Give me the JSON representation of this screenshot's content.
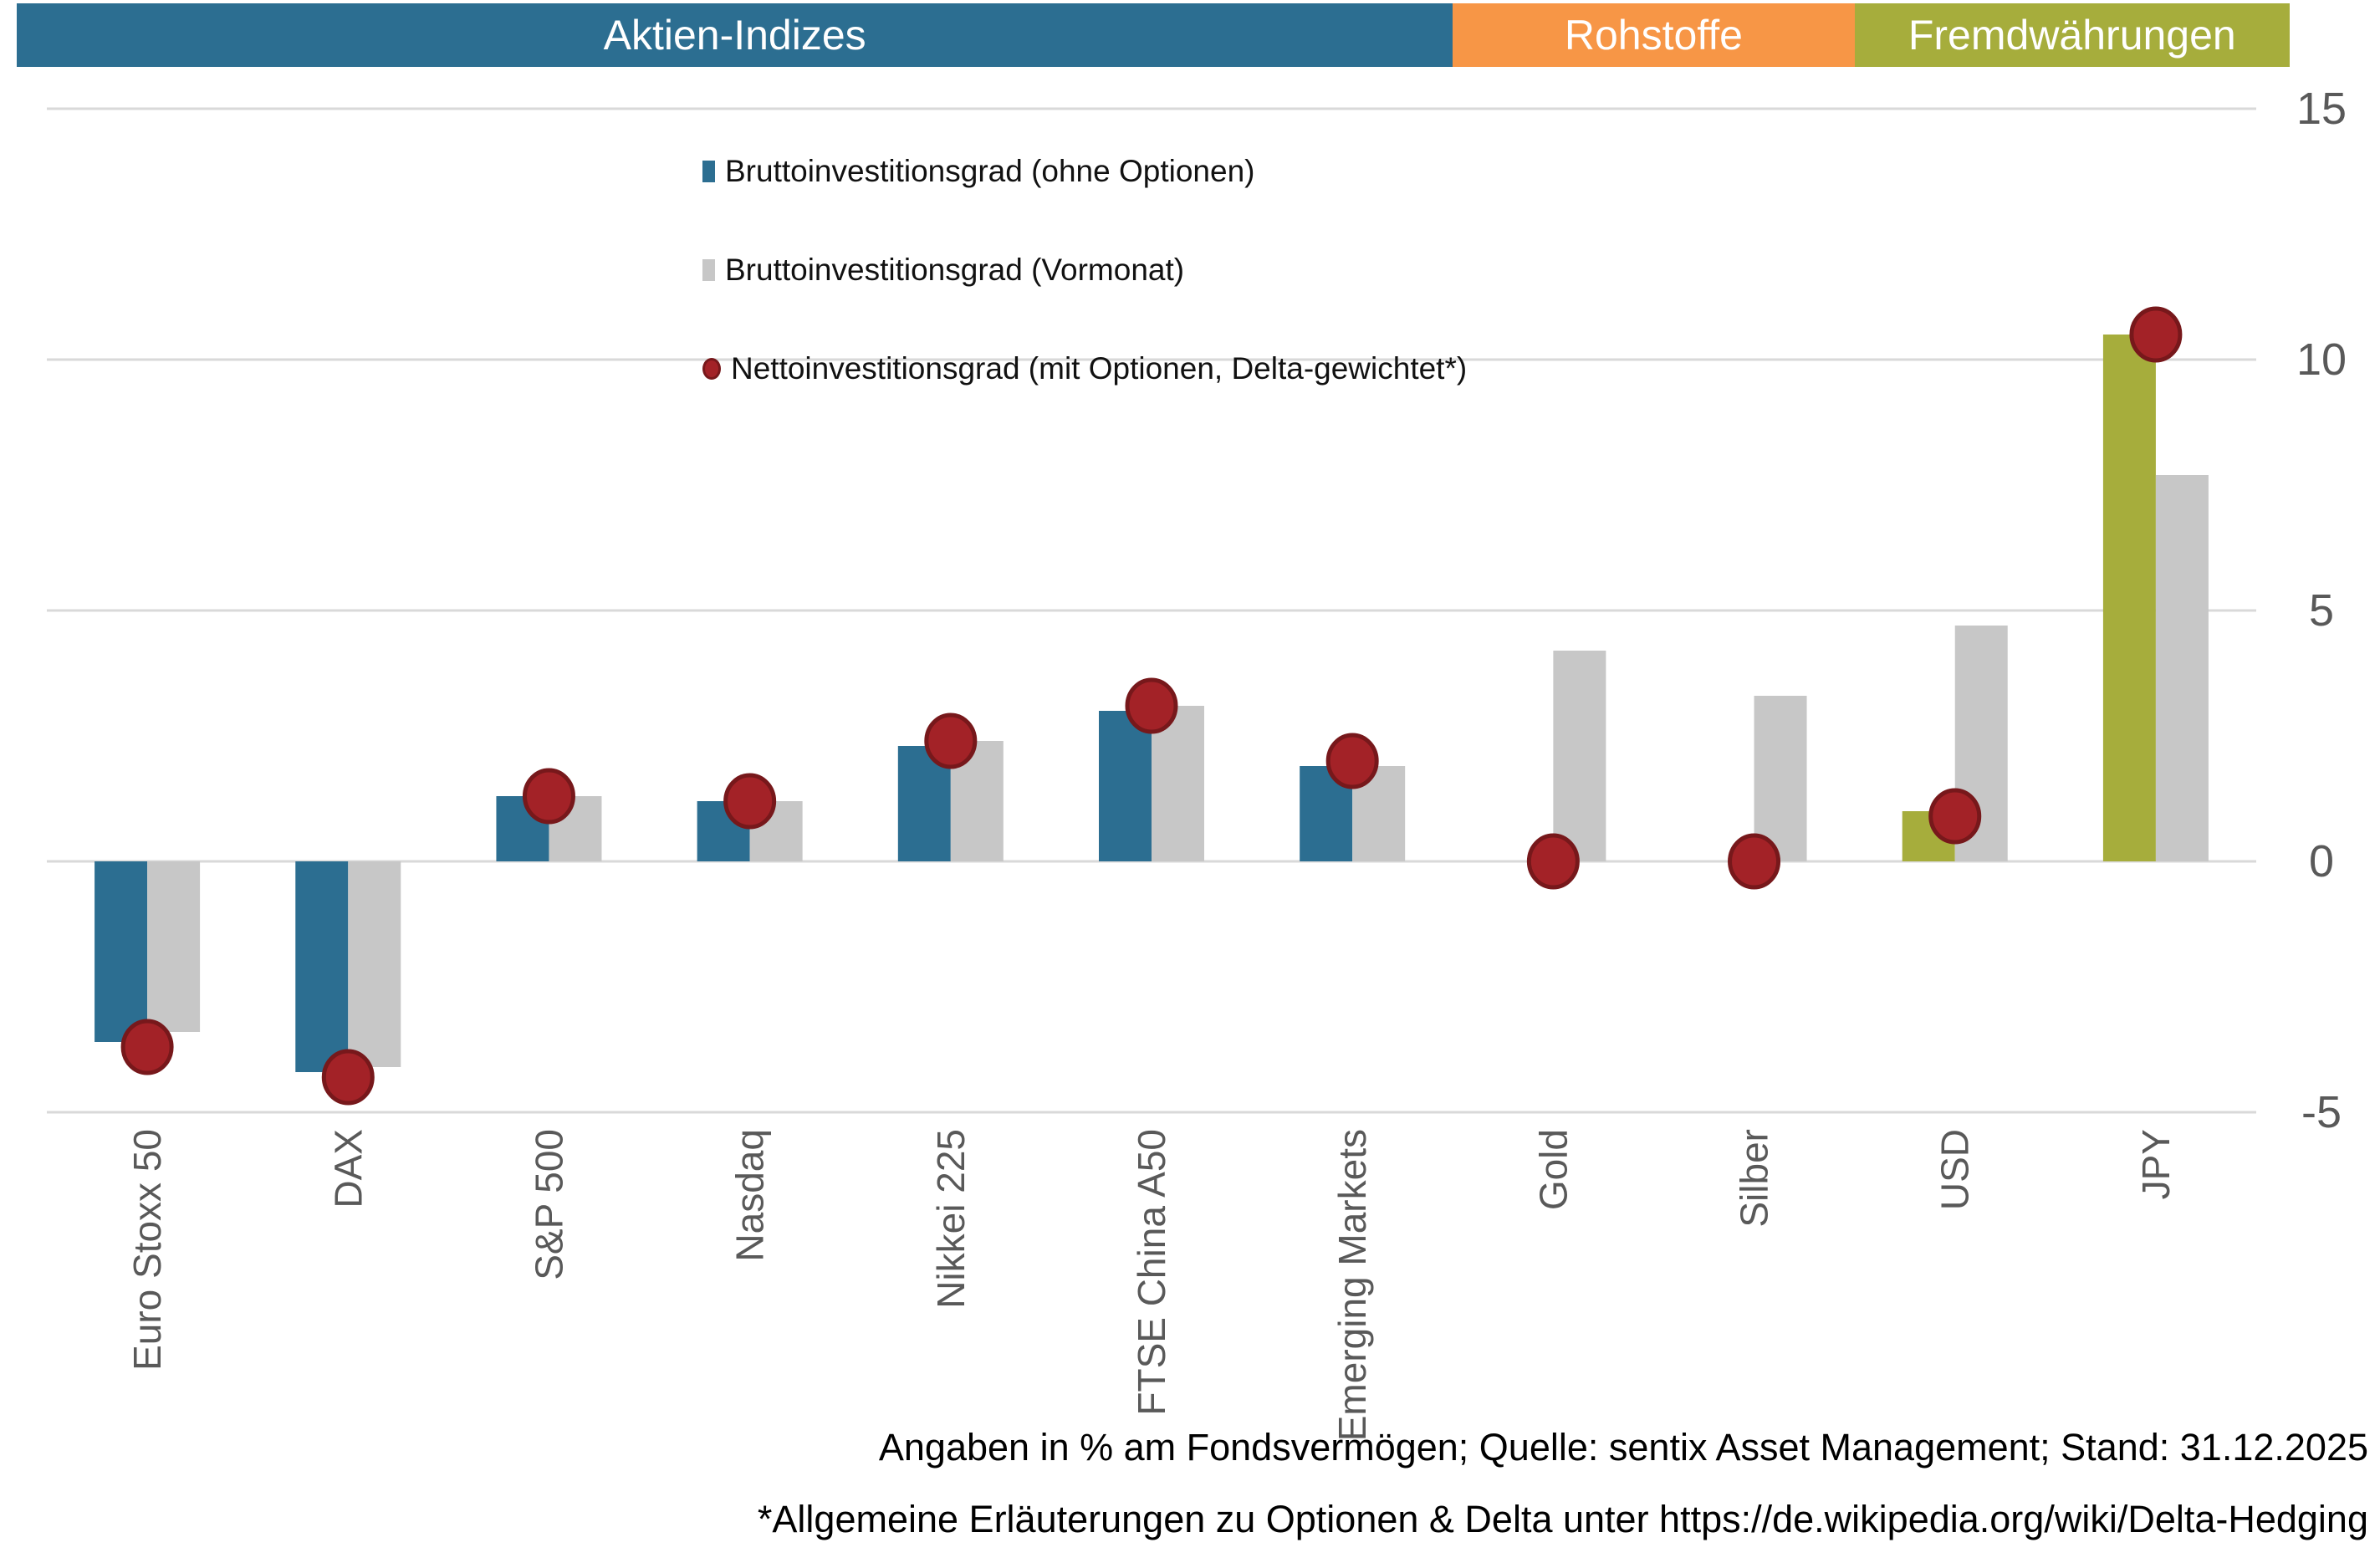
{
  "header_bands": [
    {
      "label": "Aktien-Indizes",
      "color": "#2c6e91",
      "span_categories": 7
    },
    {
      "label": "Rohstoffe",
      "color": "#f79646",
      "span_categories": 2
    },
    {
      "label": "Fremdwährungen",
      "color": "#a6ad3c",
      "span_categories": 2
    }
  ],
  "legend": [
    {
      "label": "Bruttoinvestitionsgrad (ohne Optionen)",
      "marker": "rect",
      "color": "#2c6e91"
    },
    {
      "label": "Bruttoinvestitionsgrad (Vormonat)",
      "marker": "rect",
      "color": "#c7c7c7"
    },
    {
      "label": "Nettoinvestitionsgrad (mit Optionen, Delta-gewichtet*)",
      "marker": "dot",
      "color": "#a32227",
      "border_color": "#77181b"
    }
  ],
  "chart_data": {
    "type": "bar",
    "categories": [
      "Euro Stoxx 50",
      "DAX",
      "S&P 500",
      "Nasdaq",
      "Nikkei 225",
      "FTSE China A50",
      "Emerging Markets",
      "Gold",
      "Silber",
      "USD",
      "JPY"
    ],
    "category_groups": [
      "aktien",
      "aktien",
      "aktien",
      "aktien",
      "aktien",
      "aktien",
      "aktien",
      "rohstoffe",
      "rohstoffe",
      "fremdwaehrungen",
      "fremdwaehrungen"
    ],
    "group_colors": {
      "aktien": "#2c6e91",
      "rohstoffe": "#f79646",
      "fremdwaehrungen": "#a6ad3c"
    },
    "series": [
      {
        "name": "Bruttoinvestitionsgrad (ohne Optionen)",
        "render": "bar",
        "color_by_group": true,
        "values": [
          -3.6,
          -4.2,
          1.3,
          1.2,
          2.3,
          3.0,
          1.9,
          0,
          0,
          1.0,
          10.5
        ]
      },
      {
        "name": "Bruttoinvestitionsgrad (Vormonat)",
        "render": "bar",
        "color": "#c7c7c7",
        "values": [
          -3.4,
          -4.1,
          1.3,
          1.2,
          2.4,
          3.1,
          1.9,
          4.2,
          3.3,
          4.7,
          7.7
        ]
      },
      {
        "name": "Nettoinvestitionsgrad (mit Optionen, Delta-gewichtet*)",
        "render": "point",
        "color": "#a32227",
        "border_color": "#77181b",
        "values": [
          -3.7,
          -4.3,
          1.3,
          1.2,
          2.4,
          3.1,
          2.0,
          0.0,
          0.0,
          0.9,
          10.5
        ]
      }
    ],
    "yticks": [
      "15",
      "10",
      "5",
      "0",
      "-5"
    ],
    "ytick_values": [
      15,
      10,
      5,
      0,
      -5
    ],
    "ylim": [
      -5,
      15
    ],
    "grid": true,
    "legend_position": "top-left-inside",
    "axis_side": "right",
    "tick_color": "#595959",
    "category_label_color": "#595959",
    "gridline_color": "#d9d9d9"
  },
  "footer": {
    "line1": "Angaben in % am Fondsvermögen; Quelle: sentix Asset Management; Stand: 31.12.2025",
    "line2": "*Allgemeine Erläuterungen zu Optionen & Delta unter https://de.wikipedia.org/wiki/Delta-Hedging"
  }
}
